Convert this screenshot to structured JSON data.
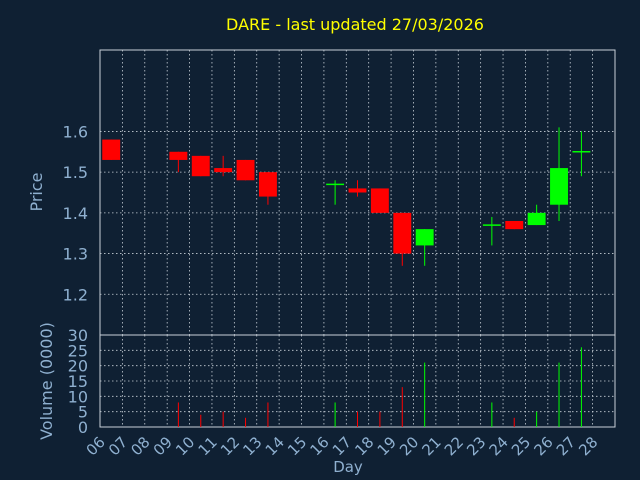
{
  "chart_data": {
    "type": "candlestick",
    "title": "DARE - last updated 27/03/2026",
    "xlabel": "Day",
    "ylabel": "Price",
    "volume_label": "Volume (0000)",
    "x_ticks": [
      "06",
      "07",
      "08",
      "09",
      "10",
      "11",
      "12",
      "13",
      "14",
      "15",
      "16",
      "17",
      "18",
      "19",
      "20",
      "21",
      "22",
      "23",
      "24",
      "25",
      "26",
      "27",
      "28"
    ],
    "price_ticks": [
      "1.2",
      "1.3",
      "1.4",
      "1.5",
      "1.6"
    ],
    "price_range": [
      1.1,
      1.8
    ],
    "volume_ticks": [
      "0",
      "5",
      "10",
      "15",
      "20",
      "25",
      "30"
    ],
    "volume_range": [
      0,
      30
    ],
    "grid": true,
    "candles": [
      {
        "day": "06",
        "open": 1.58,
        "high": 1.58,
        "low": 1.53,
        "close": 1.53,
        "volume": 0
      },
      {
        "day": "09",
        "open": 1.55,
        "high": 1.55,
        "low": 1.5,
        "close": 1.53,
        "volume": 8
      },
      {
        "day": "10",
        "open": 1.54,
        "high": 1.54,
        "low": 1.49,
        "close": 1.49,
        "volume": 4
      },
      {
        "day": "11",
        "open": 1.51,
        "high": 1.54,
        "low": 1.49,
        "close": 1.5,
        "volume": 5
      },
      {
        "day": "12",
        "open": 1.53,
        "high": 1.53,
        "low": 1.48,
        "close": 1.48,
        "volume": 3
      },
      {
        "day": "13",
        "open": 1.5,
        "high": 1.5,
        "low": 1.42,
        "close": 1.44,
        "volume": 8
      },
      {
        "day": "16",
        "open": 1.47,
        "high": 1.48,
        "low": 1.42,
        "close": 1.47,
        "volume": 8
      },
      {
        "day": "17",
        "open": 1.46,
        "high": 1.48,
        "low": 1.44,
        "close": 1.45,
        "volume": 5
      },
      {
        "day": "18",
        "open": 1.46,
        "high": 1.46,
        "low": 1.4,
        "close": 1.4,
        "volume": 5
      },
      {
        "day": "19",
        "open": 1.4,
        "high": 1.4,
        "low": 1.27,
        "close": 1.3,
        "volume": 13
      },
      {
        "day": "20",
        "open": 1.32,
        "high": 1.36,
        "low": 1.27,
        "close": 1.36,
        "volume": 21
      },
      {
        "day": "23",
        "open": 1.37,
        "high": 1.39,
        "low": 1.32,
        "close": 1.37,
        "volume": 8
      },
      {
        "day": "24",
        "open": 1.38,
        "high": 1.38,
        "low": 1.36,
        "close": 1.36,
        "volume": 3
      },
      {
        "day": "25",
        "open": 1.37,
        "high": 1.42,
        "low": 1.37,
        "close": 1.4,
        "volume": 5
      },
      {
        "day": "26",
        "open": 1.42,
        "high": 1.61,
        "low": 1.38,
        "close": 1.51,
        "volume": 21
      },
      {
        "day": "27",
        "open": 1.55,
        "high": 1.6,
        "low": 1.49,
        "close": 1.55,
        "volume": 26
      }
    ],
    "colors": {
      "background": "#0f2033",
      "grid": "#c8d0d8",
      "axis_text": "#8fb0d0",
      "title": "#ffff00",
      "up": "#00ff00",
      "down": "#ff0000"
    }
  }
}
